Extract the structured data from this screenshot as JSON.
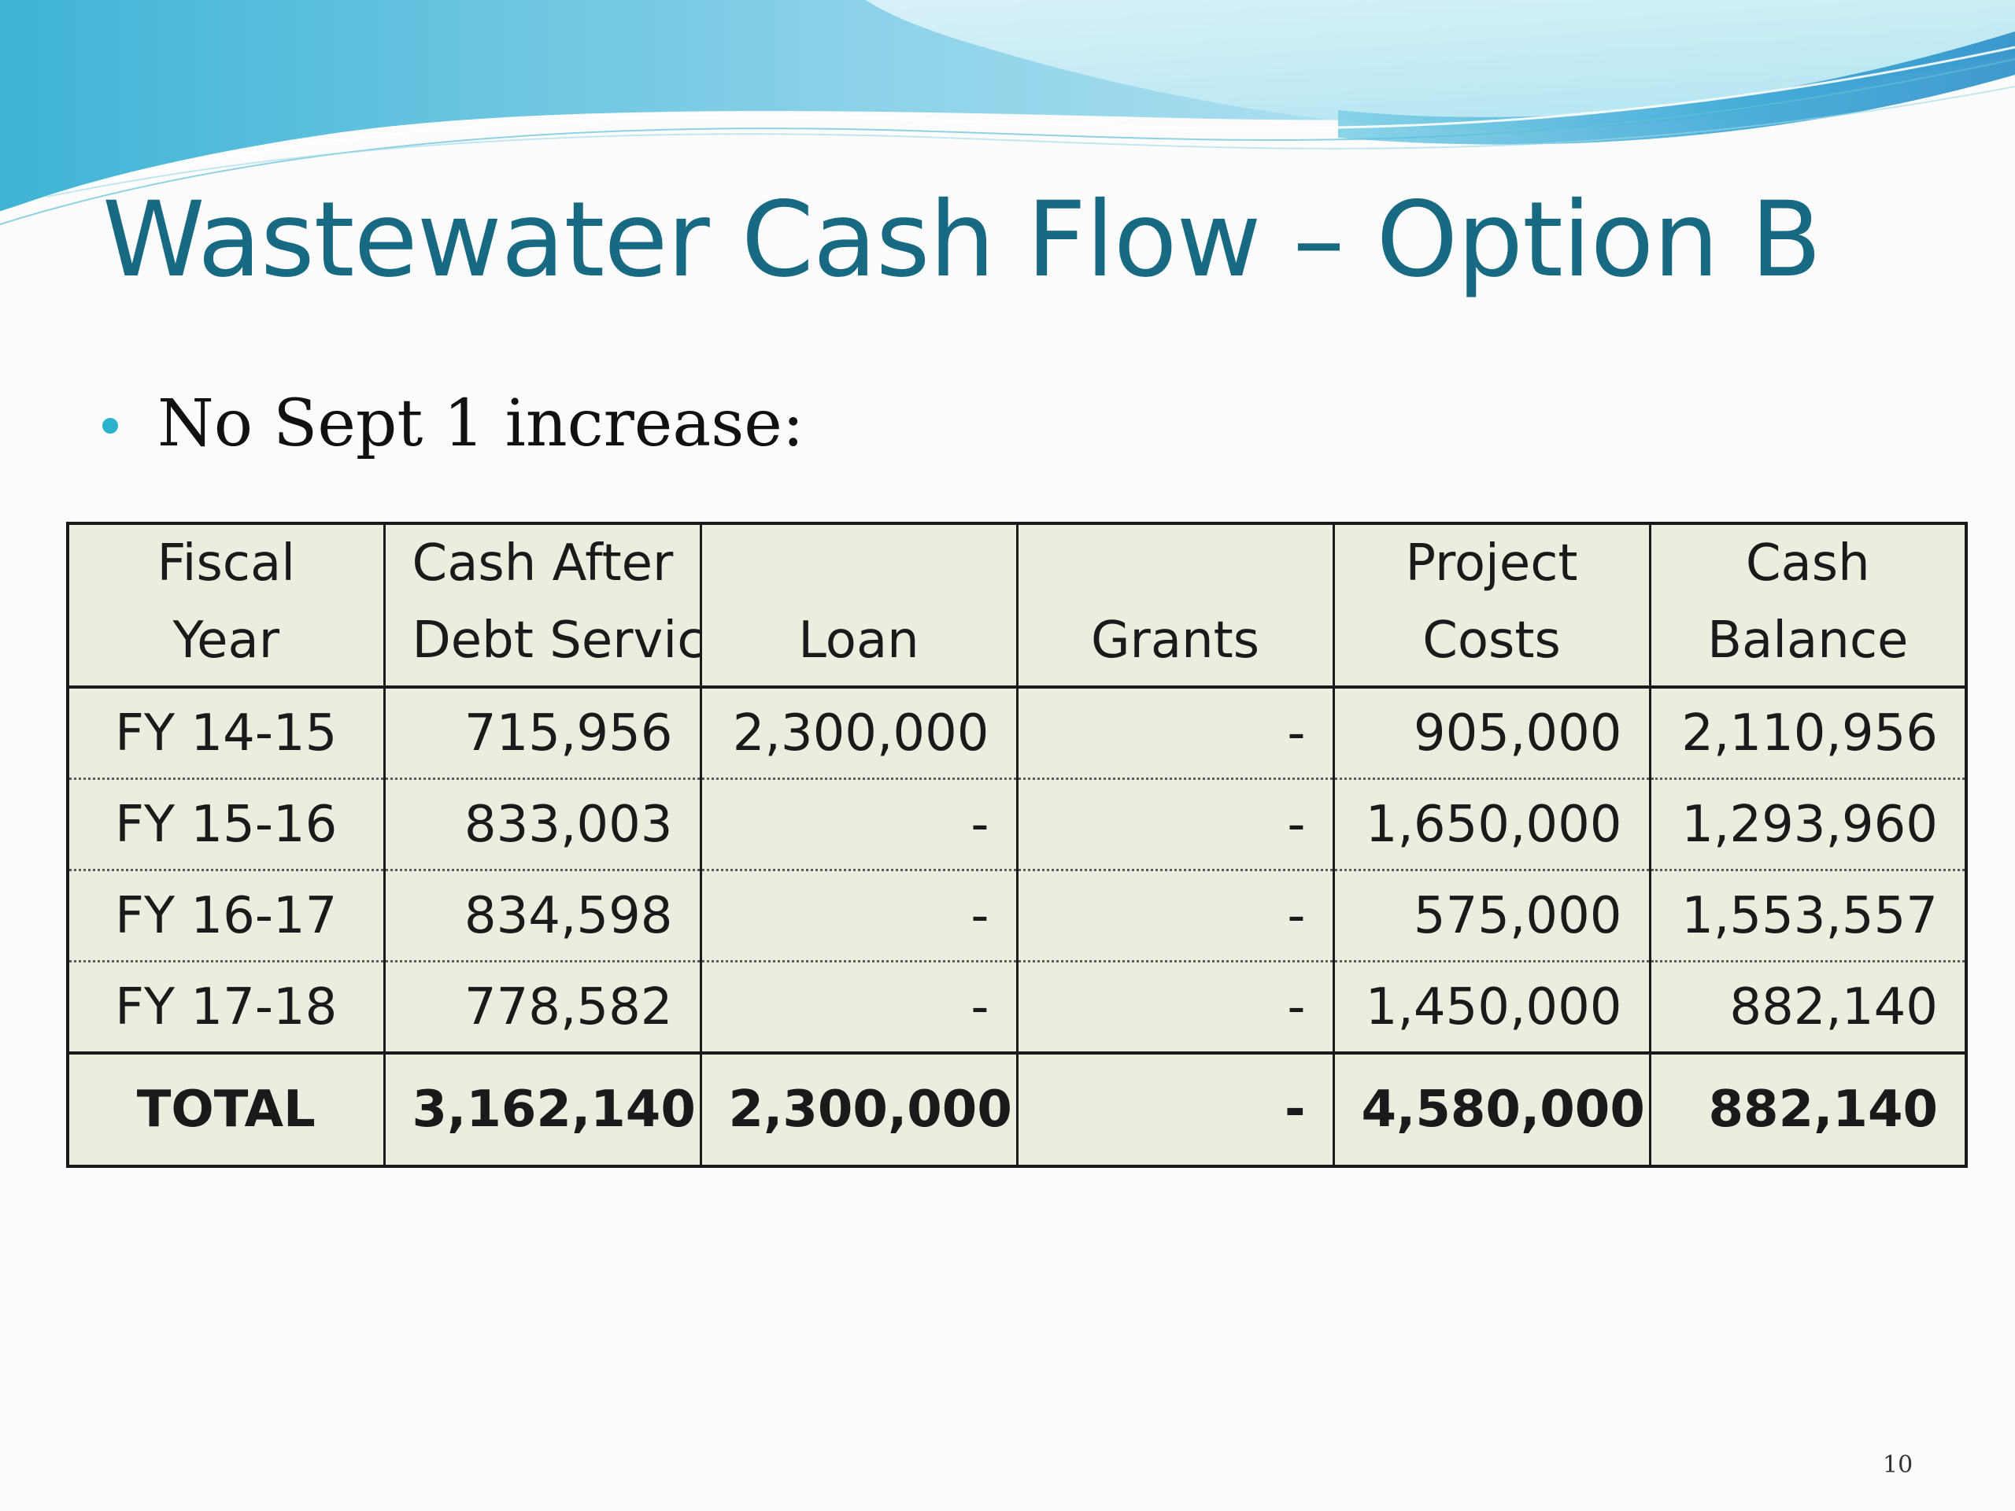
{
  "slide": {
    "title": "Wastewater Cash Flow – Option B",
    "bullet": "No Sept 1 increase:",
    "page_number": "10",
    "colors": {
      "title": "#176a82",
      "bullet": "#2bb3cc",
      "table_fill": "#ebeedf",
      "wave_light": "#bfe9f2",
      "wave_dark": "#2aa4cf"
    }
  },
  "table": {
    "headers": [
      {
        "line1": "Fiscal",
        "line2": "Year"
      },
      {
        "line1": "Cash After",
        "line2": "Debt Service"
      },
      {
        "line1": "",
        "line2": "Loan"
      },
      {
        "line1": "",
        "line2": "Grants"
      },
      {
        "line1": "Project",
        "line2": "Costs"
      },
      {
        "line1": "Cash",
        "line2": "Balance"
      }
    ],
    "rows": [
      [
        "FY 14-15",
        "715,956",
        "2,300,000",
        "-",
        "905,000",
        "2,110,956"
      ],
      [
        "FY 15-16",
        "833,003",
        "-",
        "-",
        "1,650,000",
        "1,293,960"
      ],
      [
        "FY 16-17",
        "834,598",
        "-",
        "-",
        "575,000",
        "1,553,557"
      ],
      [
        "FY 17-18",
        "778,582",
        "-",
        "-",
        "1,450,000",
        "882,140"
      ]
    ],
    "total": [
      "TOTAL",
      "3,162,140",
      "2,300,000",
      "-",
      "4,580,000",
      "882,140"
    ]
  }
}
